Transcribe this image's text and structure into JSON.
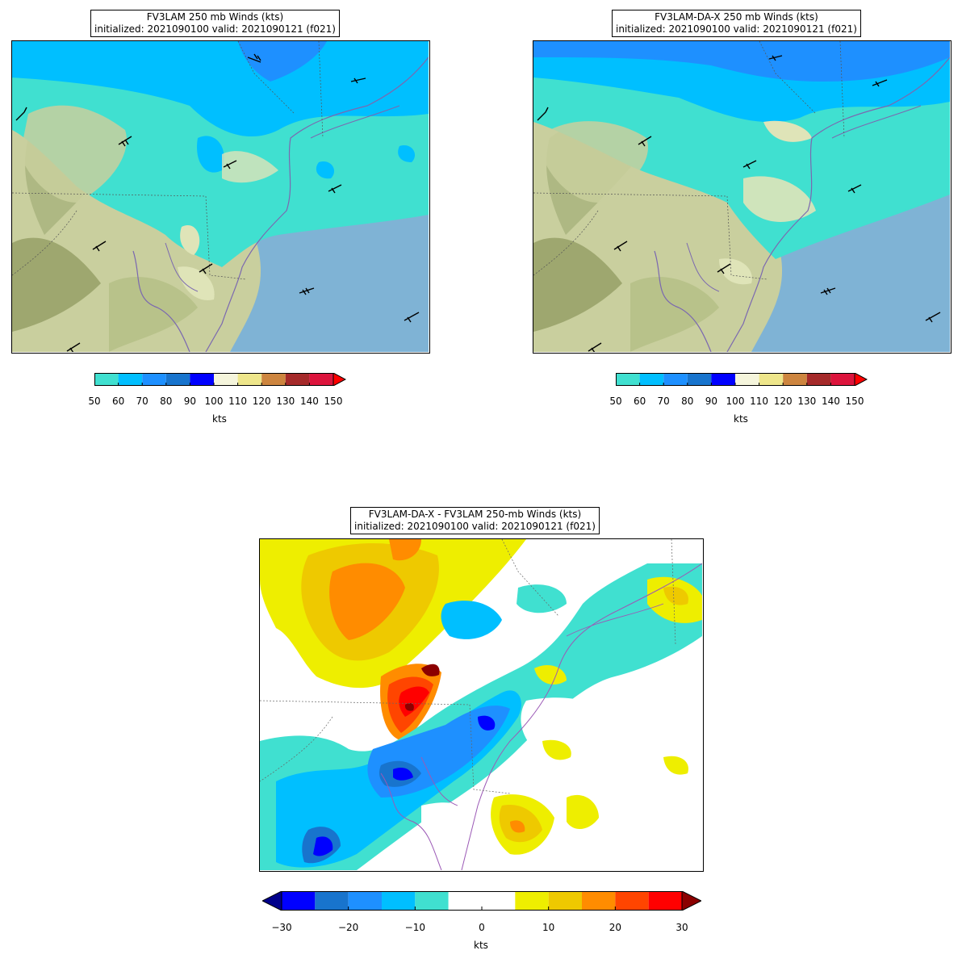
{
  "panels": [
    {
      "id": "fv3lam",
      "title_line1": "FV3LAM 250 mb Winds (kts)",
      "title_line2": "initialized: 2021090100 valid: 2021090121 (f021)",
      "colorbar": {
        "unit": "kts",
        "ticks": [
          "50",
          "60",
          "70",
          "80",
          "90",
          "100",
          "110",
          "120",
          "130",
          "140",
          "150"
        ],
        "colors": [
          "#40e0d0",
          "#00bfff",
          "#1e90ff",
          "#1874cd",
          "#0000ff",
          "#f5f5dc",
          "#eee68b",
          "#cd853f",
          "#a52a2a",
          "#dc143c"
        ],
        "extend_color": "#ff0000"
      }
    },
    {
      "id": "fv3lam-da-x",
      "title_line1": "FV3LAM-DA-X 250 mb Winds (kts)",
      "title_line2": "initialized: 2021090100 valid: 2021090121 (f021)",
      "colorbar": {
        "unit": "kts",
        "ticks": [
          "50",
          "60",
          "70",
          "80",
          "90",
          "100",
          "110",
          "120",
          "130",
          "140",
          "150"
        ],
        "colors": [
          "#40e0d0",
          "#00bfff",
          "#1e90ff",
          "#1874cd",
          "#0000ff",
          "#f5f5dc",
          "#eee68b",
          "#cd853f",
          "#a52a2a",
          "#dc143c"
        ],
        "extend_color": "#ff0000"
      }
    },
    {
      "id": "difference",
      "title_line1": "FV3LAM-DA-X - FV3LAM 250-mb Winds (kts)",
      "title_line2": "initialized: 2021090100 valid: 2021090121 (f021)",
      "colorbar": {
        "unit": "kts",
        "ticks": [
          "−30",
          "−20",
          "−10",
          "0",
          "10",
          "20",
          "30"
        ],
        "colors": [
          "#0000ff",
          "#1874cd",
          "#1e90ff",
          "#00bfff",
          "#40e0d0",
          "#ffffff",
          "#ffffff",
          "#eeee00",
          "#eec900",
          "#ff8c00",
          "#ff4500",
          "#ff0000"
        ],
        "extend_low_color": "#00008b",
        "extend_high_color": "#8b0000"
      }
    }
  ]
}
